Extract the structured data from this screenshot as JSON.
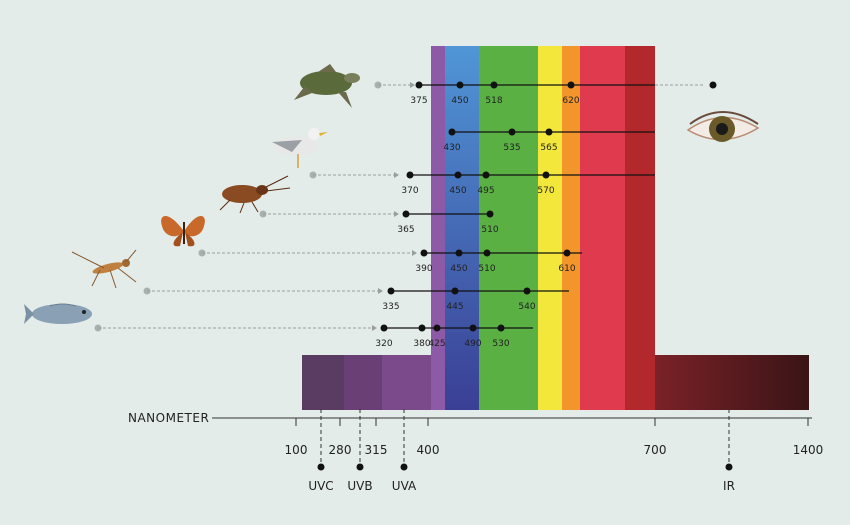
{
  "axis": {
    "label": "NANOMETER",
    "ticks": [
      "100",
      "280",
      "315",
      "400",
      "700",
      "1400"
    ],
    "bands": [
      {
        "id": "uvc",
        "label": "UVC"
      },
      {
        "id": "uvb",
        "label": "UVB"
      },
      {
        "id": "uva",
        "label": "UVA"
      },
      {
        "id": "ir",
        "label": "IR"
      }
    ]
  },
  "colors": {
    "uvc": "#5a3c63",
    "uvb": "#6a3f76",
    "uva": "#7a4a8a",
    "violet": "#8c5aa6",
    "blue": "#4f8fd0",
    "indigo": "#3e4f9e",
    "green": "#5ab042",
    "yellow": "#f2e73a",
    "orange": "#f2952a",
    "red": "#e03a4e",
    "darkred": "#b3282d",
    "ir": "#5c1e20"
  },
  "organisms": [
    {
      "id": "sea-turtle",
      "icon": "sea-turtle-icon",
      "labels": [
        "375",
        "450",
        "518",
        "620"
      ]
    },
    {
      "id": "human",
      "icon": "human-eye-icon",
      "labels": [
        "430",
        "535",
        "565"
      ]
    },
    {
      "id": "seagull",
      "icon": "seagull-icon",
      "labels": [
        "370",
        "450",
        "495",
        "570"
      ]
    },
    {
      "id": "cockroach",
      "icon": "cockroach-icon",
      "labels": [
        "365",
        "510"
      ]
    },
    {
      "id": "butterfly",
      "icon": "butterfly-icon",
      "labels": [
        "390",
        "450",
        "510",
        "610"
      ]
    },
    {
      "id": "mosquito",
      "icon": "mosquito-icon",
      "labels": [
        "335",
        "445",
        "540"
      ]
    },
    {
      "id": "fish",
      "icon": "fish-icon",
      "labels": [
        "320",
        "380",
        "425",
        "490",
        "530"
      ]
    }
  ]
}
